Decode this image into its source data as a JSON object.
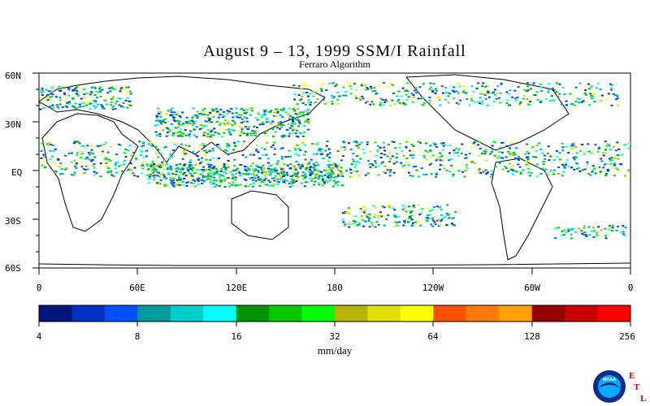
{
  "title": "August 9 – 13, 1999 SSM/I Rainfall",
  "subtitle": "Ferraro Algorithm",
  "map": {
    "lat_labels": [
      "60N",
      "30N",
      "EQ",
      "30S",
      "60S"
    ],
    "lon_labels": [
      "0",
      "60E",
      "120E",
      "180",
      "120W",
      "60W",
      "0"
    ]
  },
  "colorbar": {
    "units": "mm/day",
    "tick_labels": [
      "4",
      "8",
      "16",
      "32",
      "64",
      "128",
      "256"
    ],
    "colors": [
      "#00157a",
      "#0030c0",
      "#0050ff",
      "#009a9a",
      "#00cccc",
      "#00ffff",
      "#009400",
      "#00c800",
      "#00ff00",
      "#b4b400",
      "#e0e000",
      "#ffff00",
      "#ff5000",
      "#ff7800",
      "#ffa000",
      "#960000",
      "#c80000",
      "#ff0000"
    ]
  },
  "logo": {
    "text": "NOAA",
    "letters": [
      "E",
      "T",
      "L"
    ],
    "colors": {
      "ring": "#0a2c8a",
      "inner": "#00aaff",
      "letters": "#cc0000"
    }
  }
}
